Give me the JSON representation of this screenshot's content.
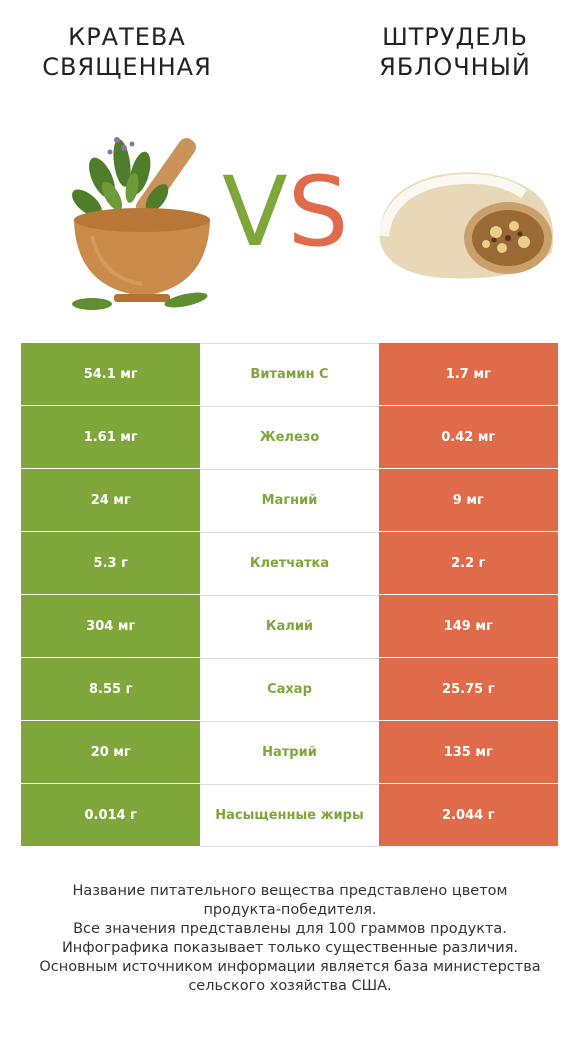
{
  "header": {
    "left_title": "Кратева священная",
    "right_title": "Штрудель яблочный",
    "vs_v": "V",
    "vs_s": "S"
  },
  "colors": {
    "left_accent": "#7fa63a",
    "right_accent": "#e06b4b"
  },
  "rows": [
    {
      "left": "54.1 мг",
      "nutrient": "Витамин C",
      "right": "1.7 мг",
      "winner": "left"
    },
    {
      "left": "1.61 мг",
      "nutrient": "Железо",
      "right": "0.42 мг",
      "winner": "left"
    },
    {
      "left": "24 мг",
      "nutrient": "Магний",
      "right": "9 мг",
      "winner": "left"
    },
    {
      "left": "5.3 г",
      "nutrient": "Клетчатка",
      "right": "2.2 г",
      "winner": "left"
    },
    {
      "left": "304 мг",
      "nutrient": "Калий",
      "right": "149 мг",
      "winner": "left"
    },
    {
      "left": "8.55 г",
      "nutrient": "Сахар",
      "right": "25.75 г",
      "winner": "left"
    },
    {
      "left": "20 мг",
      "nutrient": "Натрий",
      "right": "135 мг",
      "winner": "left"
    },
    {
      "left": "0.014 г",
      "nutrient": "Насыщенные жиры",
      "right": "2.044 г",
      "winner": "left"
    }
  ],
  "footnote": {
    "line1": "Название питательного вещества представлено цветом",
    "line2": "продукта-победителя.",
    "line3": "Все значения представлены для 100 граммов продукта.",
    "line4": "Инфографика показывает только существенные различия.",
    "line5": "Основным источником информации является база министерства",
    "line6": "сельского хозяйства США."
  }
}
